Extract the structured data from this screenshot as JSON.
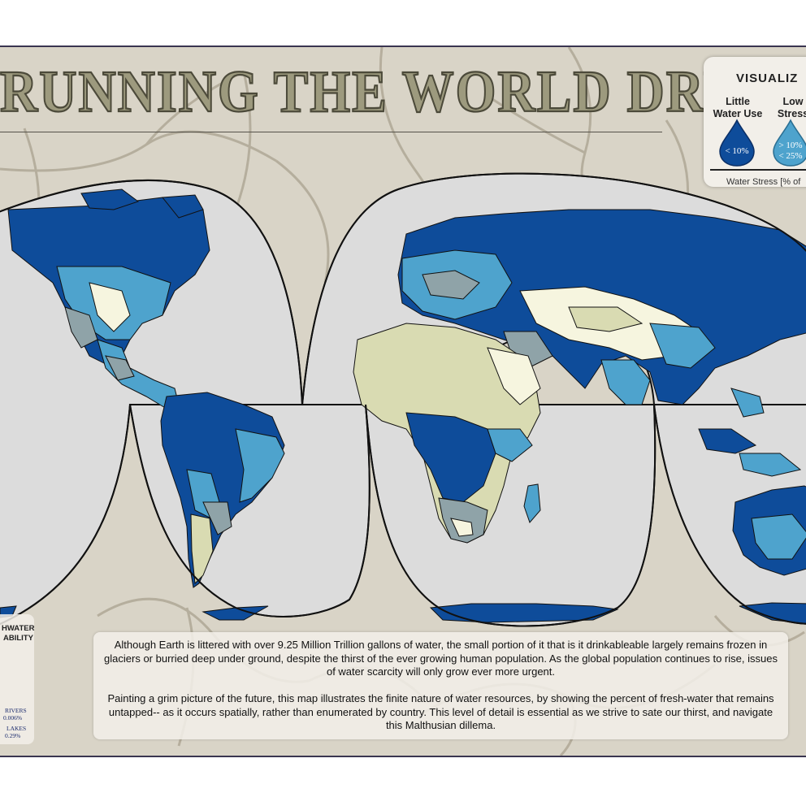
{
  "title": "RUNNING THE WORLD DRY",
  "legend": {
    "title": "VISUALIZ",
    "categories": [
      {
        "label_line1": "Little",
        "label_line2": "Water Use",
        "range_line1": "< 10%",
        "range_line2": "",
        "color": "#0e4c9a"
      },
      {
        "label_line1": "Low",
        "label_line2": "Stress",
        "range_line1": "> 10%",
        "range_line2": "< 25%",
        "color": "#4ea3cd"
      }
    ],
    "axis_label": "Water Stress [% of"
  },
  "freshwater_panel": {
    "heading_line1": "HWATER",
    "heading_line2": "ABILITY",
    "rivers_label": "RIVERS",
    "rivers_value": "0.006%",
    "lakes_label": "LAKES",
    "lakes_value": "0.29%"
  },
  "description": {
    "paragraph1": "Although Earth is littered with over 9.25 Million Trillion gallons of water, the small portion of it that is it drinkableable largely remains frozen in glaciers or burried deep under ground, despite the thirst of the ever growing human population.  As the global population continues to rise, issues of water scarcity will only grow ever more urgent.",
    "paragraph2": "Painting a grim picture of the future, this map illustrates the finite nature of water resources, by showing the percent of fresh-water that remains untapped-- as it occurs spatially, rather than enumerated by country.  This level of detail is essential as we strive to sate our thirst, and navigate this Malthusian dillema."
  },
  "colors": {
    "little_use": "#0e4c9a",
    "low_stress": "#4ea3cd",
    "medium_stress": "#8fa3a8",
    "high_stress": "#d9dbb2",
    "extreme_stress": "#f6f5df",
    "ocean": "#dcdcdc",
    "background": "#d9d4c7"
  }
}
